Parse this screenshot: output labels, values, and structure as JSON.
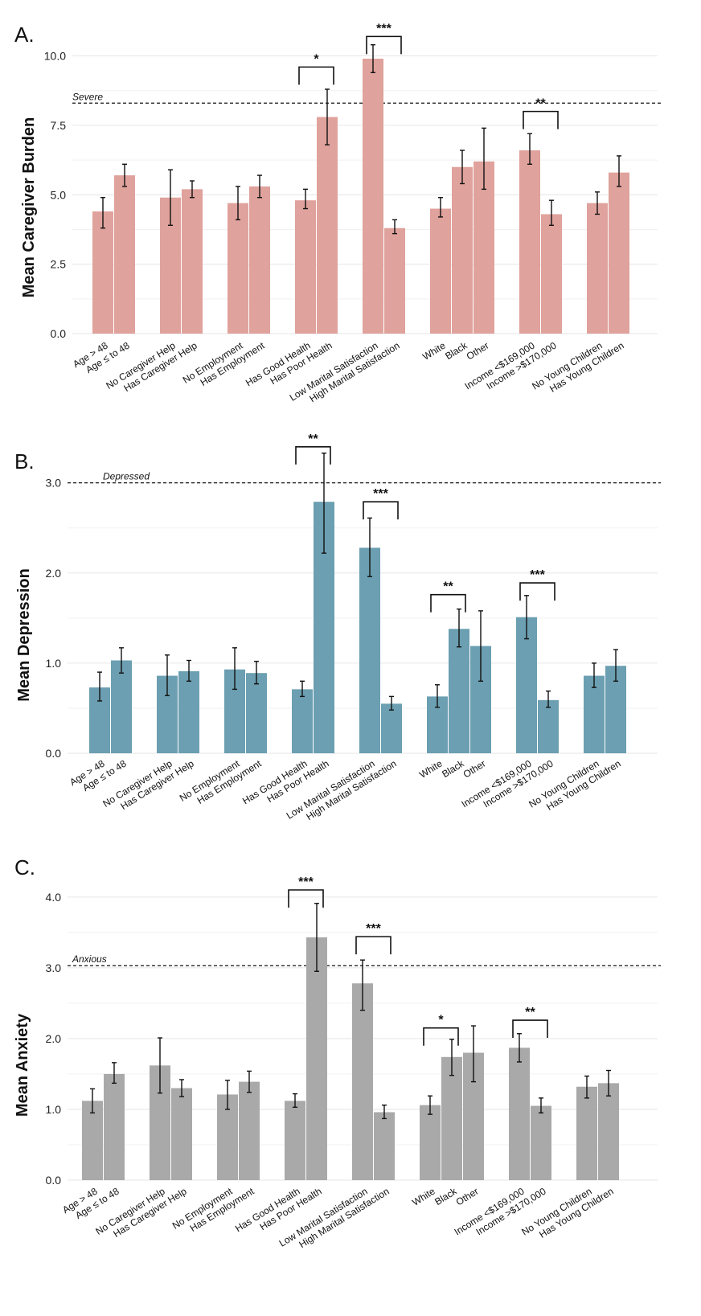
{
  "chart_data": [
    {
      "type": "bar",
      "panel": "A.",
      "ylabel": "Mean Caregiver Burden",
      "ylim": [
        0,
        11
      ],
      "yticks": [
        "0.0",
        "2.5",
        "5.0",
        "7.5",
        "10.0"
      ],
      "ytick_values": [
        0,
        2.5,
        5,
        7.5,
        10
      ],
      "bar_color": "#e0a29c",
      "reference_line": {
        "value": 8.3,
        "label": "Severe"
      },
      "categories": [
        "Age > 48",
        "Age ≤ to 48",
        "No Caregiver Help",
        "Has Caregiver Help",
        "No Employment",
        "Has Employment",
        "Has Good Health",
        "Has Poor Health",
        "Low Marital Satisfaction",
        "High Marital Satisfaction",
        "White",
        "Black",
        "Other",
        "Income <$169,000",
        "Income >$170,000",
        "No Young Children",
        "Has Young Children"
      ],
      "groups": [
        2,
        2,
        2,
        2,
        2,
        3,
        2,
        2
      ],
      "values": [
        4.4,
        5.7,
        4.9,
        5.2,
        4.7,
        5.3,
        4.8,
        7.8,
        9.9,
        3.8,
        4.5,
        6.0,
        6.2,
        6.6,
        4.3,
        4.7,
        5.8
      ],
      "err_low": [
        3.8,
        5.3,
        3.9,
        4.9,
        4.1,
        4.9,
        4.5,
        6.8,
        9.4,
        3.6,
        4.2,
        5.4,
        5.2,
        6.1,
        3.9,
        4.3,
        5.3
      ],
      "err_high": [
        4.9,
        6.1,
        5.9,
        5.5,
        5.3,
        5.7,
        5.2,
        8.8,
        10.4,
        4.1,
        4.9,
        6.6,
        7.4,
        7.2,
        4.8,
        5.1,
        6.4
      ],
      "significance": [
        {
          "from": "Has Good Health",
          "to": "Has Poor Health",
          "label": "*",
          "level": 9.6
        },
        {
          "from": "Low Marital Satisfaction",
          "to": "High Marital Satisfaction",
          "label": "***",
          "level": 10.7
        },
        {
          "from": "Income <$169,000",
          "to": "Income >$170,000",
          "label": "**",
          "level": 8.0
        }
      ]
    },
    {
      "type": "bar",
      "panel": "B.",
      "ylabel": "Mean Depression",
      "ylim": [
        0,
        3.3
      ],
      "yticks": [
        "0.0",
        "1.0",
        "2.0",
        "3.0"
      ],
      "ytick_values": [
        0,
        1,
        2,
        3
      ],
      "bar_color": "#6b9fb1",
      "reference_line": {
        "value": 3.0,
        "label": "Depressed"
      },
      "categories": [
        "Age > 48",
        "Age ≤ to 48",
        "No Caregiver Help",
        "Has Caregiver Help",
        "No Employment",
        "Has Employment",
        "Has Good Health",
        "Has Poor Health",
        "Low Marital Satisfaction",
        "High Marital Satisfaction",
        "White",
        "Black",
        "Other",
        "Income <$169,000",
        "Income >$170,000",
        "No Young Children",
        "Has Young Children"
      ],
      "groups": [
        2,
        2,
        2,
        2,
        2,
        3,
        2,
        2
      ],
      "values": [
        0.73,
        1.03,
        0.86,
        0.91,
        0.93,
        0.89,
        0.71,
        2.79,
        2.28,
        0.55,
        0.63,
        1.38,
        1.19,
        1.51,
        0.59,
        0.86,
        0.97
      ],
      "err_low": [
        0.58,
        0.89,
        0.64,
        0.8,
        0.71,
        0.77,
        0.63,
        2.22,
        1.96,
        0.48,
        0.51,
        1.18,
        0.8,
        1.27,
        0.51,
        0.73,
        0.8
      ],
      "err_high": [
        0.9,
        1.17,
        1.09,
        1.03,
        1.17,
        1.02,
        0.8,
        3.33,
        2.61,
        0.63,
        0.76,
        1.6,
        1.58,
        1.75,
        0.69,
        1.0,
        1.15
      ],
      "significance": [
        {
          "from": "Has Good Health",
          "to": "Has Poor Health",
          "label": "**",
          "level": 3.4
        },
        {
          "from": "Low Marital Satisfaction",
          "to": "High Marital Satisfaction",
          "label": "***",
          "level": 2.79
        },
        {
          "from": "White",
          "to": "Black",
          "label": "**",
          "level": 1.76
        },
        {
          "from": "Income <$169,000",
          "to": "Income >$170,000",
          "label": "***",
          "level": 1.89
        }
      ]
    },
    {
      "type": "bar",
      "panel": "C.",
      "ylabel": "Mean Anxiety",
      "ylim": [
        0,
        4.35
      ],
      "yticks": [
        "0.0",
        "1.0",
        "2.0",
        "3.0",
        "4.0"
      ],
      "ytick_values": [
        0,
        1,
        2,
        3,
        4
      ],
      "bar_color": "#a9a9a9",
      "reference_line": {
        "value": 3.03,
        "label": "Anxious"
      },
      "categories": [
        "Age > 48",
        "Age ≤ to 48",
        "No Caregiver Help",
        "Has Caregiver Help",
        "No Employment",
        "Has Employment",
        "Has Good Health",
        "Has Poor Health",
        "Low Marital Satisfaction",
        "High Marital Satisfaction",
        "White",
        "Black",
        "Other",
        "Income <$169,000",
        "Income >$170,000",
        "No Young Children",
        "Has Young Children"
      ],
      "groups": [
        2,
        2,
        2,
        2,
        2,
        3,
        2,
        2
      ],
      "values": [
        1.12,
        1.5,
        1.62,
        1.3,
        1.21,
        1.39,
        1.12,
        3.43,
        2.78,
        0.96,
        1.06,
        1.74,
        1.8,
        1.87,
        1.05,
        1.32,
        1.37
      ],
      "err_low": [
        0.95,
        1.37,
        1.23,
        1.18,
        1.0,
        1.24,
        1.03,
        2.95,
        2.4,
        0.87,
        0.93,
        1.48,
        1.39,
        1.67,
        0.95,
        1.16,
        1.19
      ],
      "err_high": [
        1.29,
        1.66,
        2.01,
        1.42,
        1.41,
        1.54,
        1.22,
        3.91,
        3.11,
        1.06,
        1.19,
        1.99,
        2.18,
        2.07,
        1.16,
        1.47,
        1.55
      ],
      "significance": [
        {
          "from": "Has Good Health",
          "to": "Has Poor Health",
          "label": "***",
          "level": 4.1
        },
        {
          "from": "Low Marital Satisfaction",
          "to": "High Marital Satisfaction",
          "label": "***",
          "level": 3.44
        },
        {
          "from": "White",
          "to": "Black",
          "label": "*",
          "level": 2.15
        },
        {
          "from": "Income <$169,000",
          "to": "Income >$170,000",
          "label": "**",
          "level": 2.26
        }
      ]
    }
  ]
}
